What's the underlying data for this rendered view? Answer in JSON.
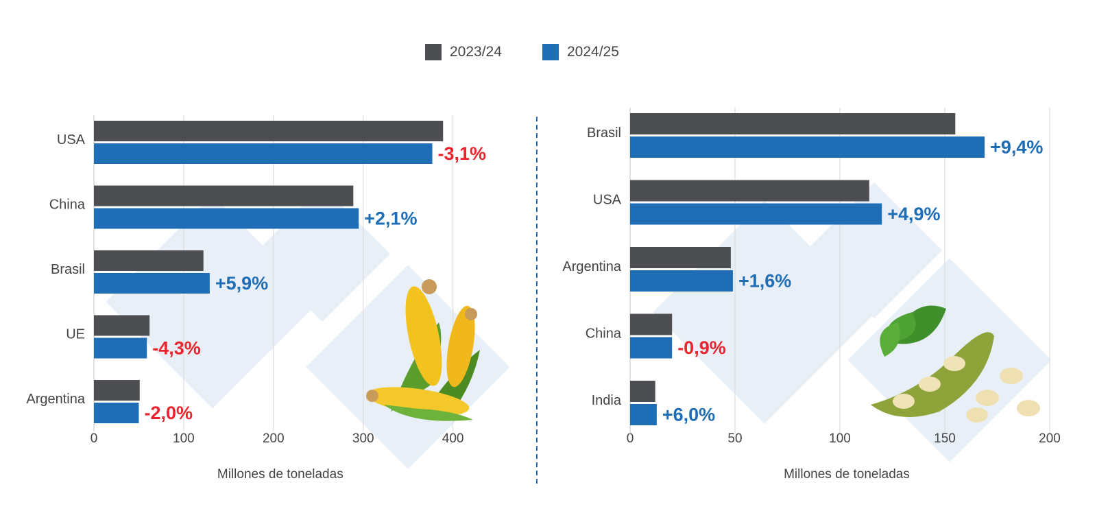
{
  "legend": [
    {
      "label": "2023/24",
      "color": "#4d4e52"
    },
    {
      "label": "2024/25",
      "color": "#1f6db5"
    }
  ],
  "colors": {
    "positive": "#1f6db5",
    "negative": "#e8242e",
    "grid": "#dddddd",
    "divider": "#1f6db5"
  },
  "chart_data": [
    {
      "type": "bar",
      "orientation": "horizontal",
      "categories": [
        "USA",
        "China",
        "Brasil",
        "UE",
        "Argentina"
      ],
      "series": [
        {
          "name": "2023/24",
          "values": [
            389,
            289,
            122,
            62,
            51
          ]
        },
        {
          "name": "2024/25",
          "values": [
            377,
            295,
            129,
            59,
            50
          ]
        }
      ],
      "changes": [
        "-3,1%",
        "+2,1%",
        "+5,9%",
        "-4,3%",
        "-2,0%"
      ],
      "change_sign": [
        "neg",
        "pos",
        "pos",
        "neg",
        "neg"
      ],
      "xticks": [
        0,
        100,
        200,
        300,
        400
      ],
      "xlim": [
        0,
        440
      ],
      "xlabel": "Millones de toneladas",
      "grid": true,
      "decoration": "corn-illustration"
    },
    {
      "type": "bar",
      "orientation": "horizontal",
      "categories": [
        "Brasil",
        "USA",
        "Argentina",
        "China",
        "India"
      ],
      "series": [
        {
          "name": "2023/24",
          "values": [
            155,
            114,
            48,
            20,
            12
          ]
        },
        {
          "name": "2024/25",
          "values": [
            169,
            120,
            49,
            20,
            12.7
          ]
        }
      ],
      "changes": [
        "+9,4%",
        "+4,9%",
        "+1,6%",
        "-0,9%",
        "+6,0%"
      ],
      "change_sign": [
        "pos",
        "pos",
        "pos",
        "neg",
        "pos"
      ],
      "xticks": [
        0,
        50,
        100,
        150,
        200
      ],
      "xlim": [
        0,
        200
      ],
      "xlabel": "Millones de toneladas",
      "grid": true,
      "decoration": "soybean-illustration"
    }
  ]
}
